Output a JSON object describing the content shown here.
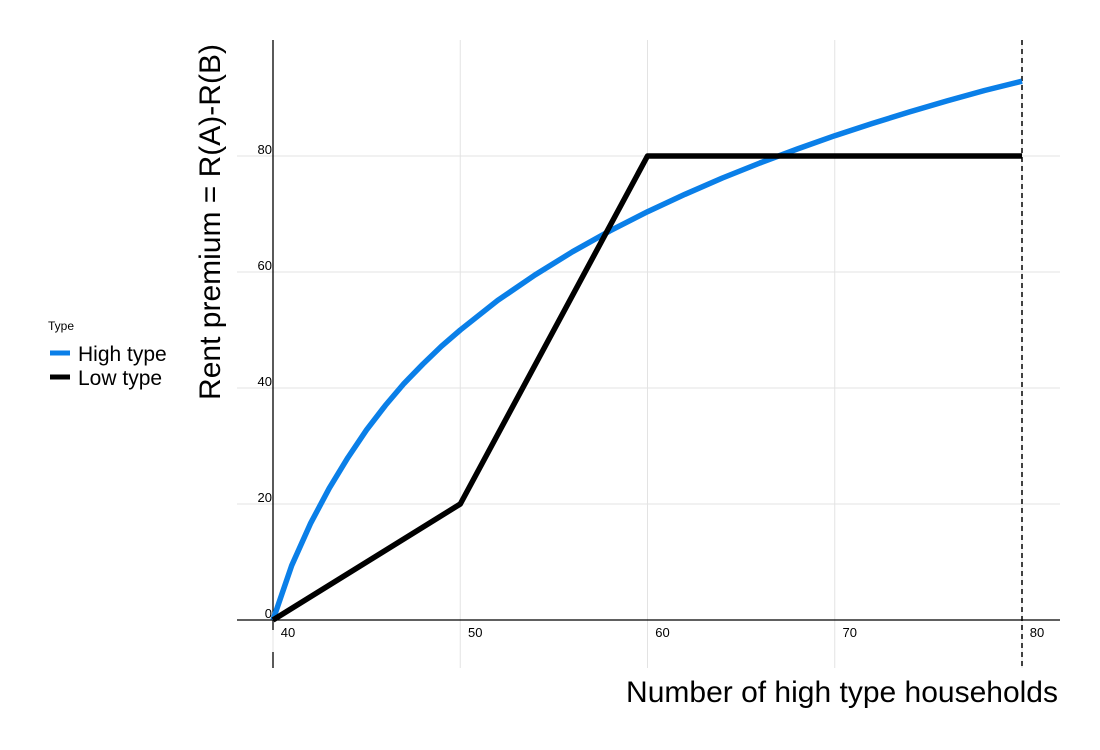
{
  "chart_data": {
    "type": "line",
    "xlabel": "Number of high type households",
    "ylabel": "Rent premium = R(A)-R(B)",
    "xlim": [
      40,
      80
    ],
    "ylim": [
      0,
      100
    ],
    "x_ticks": [
      40,
      50,
      60,
      70,
      80
    ],
    "y_ticks": [
      0,
      20,
      40,
      60,
      80
    ],
    "grid": true,
    "legend": {
      "title": "Type",
      "placement": "left"
    },
    "vline": {
      "x": 80,
      "style": "dashed",
      "color": "#000000"
    },
    "series": [
      {
        "name": "High type",
        "color": "#0a7fe8",
        "x": [
          40,
          41,
          42,
          43,
          44,
          45,
          46,
          47,
          48,
          49,
          50,
          52,
          54,
          56,
          58,
          60,
          62,
          64,
          66,
          68,
          70,
          72,
          74,
          76,
          78,
          80
        ],
        "y": [
          0,
          9.4,
          16.6,
          22.7,
          28.0,
          32.8,
          37.0,
          40.8,
          44.1,
          47.2,
          50.0,
          55.1,
          59.5,
          63.5,
          67.1,
          70.4,
          73.4,
          76.2,
          78.8,
          81.2,
          83.5,
          85.6,
          87.6,
          89.5,
          91.3,
          92.9
        ]
      },
      {
        "name": "Low type",
        "color": "#000000",
        "x": [
          40,
          50,
          60,
          80
        ],
        "y": [
          0,
          20,
          80,
          80
        ]
      }
    ]
  }
}
